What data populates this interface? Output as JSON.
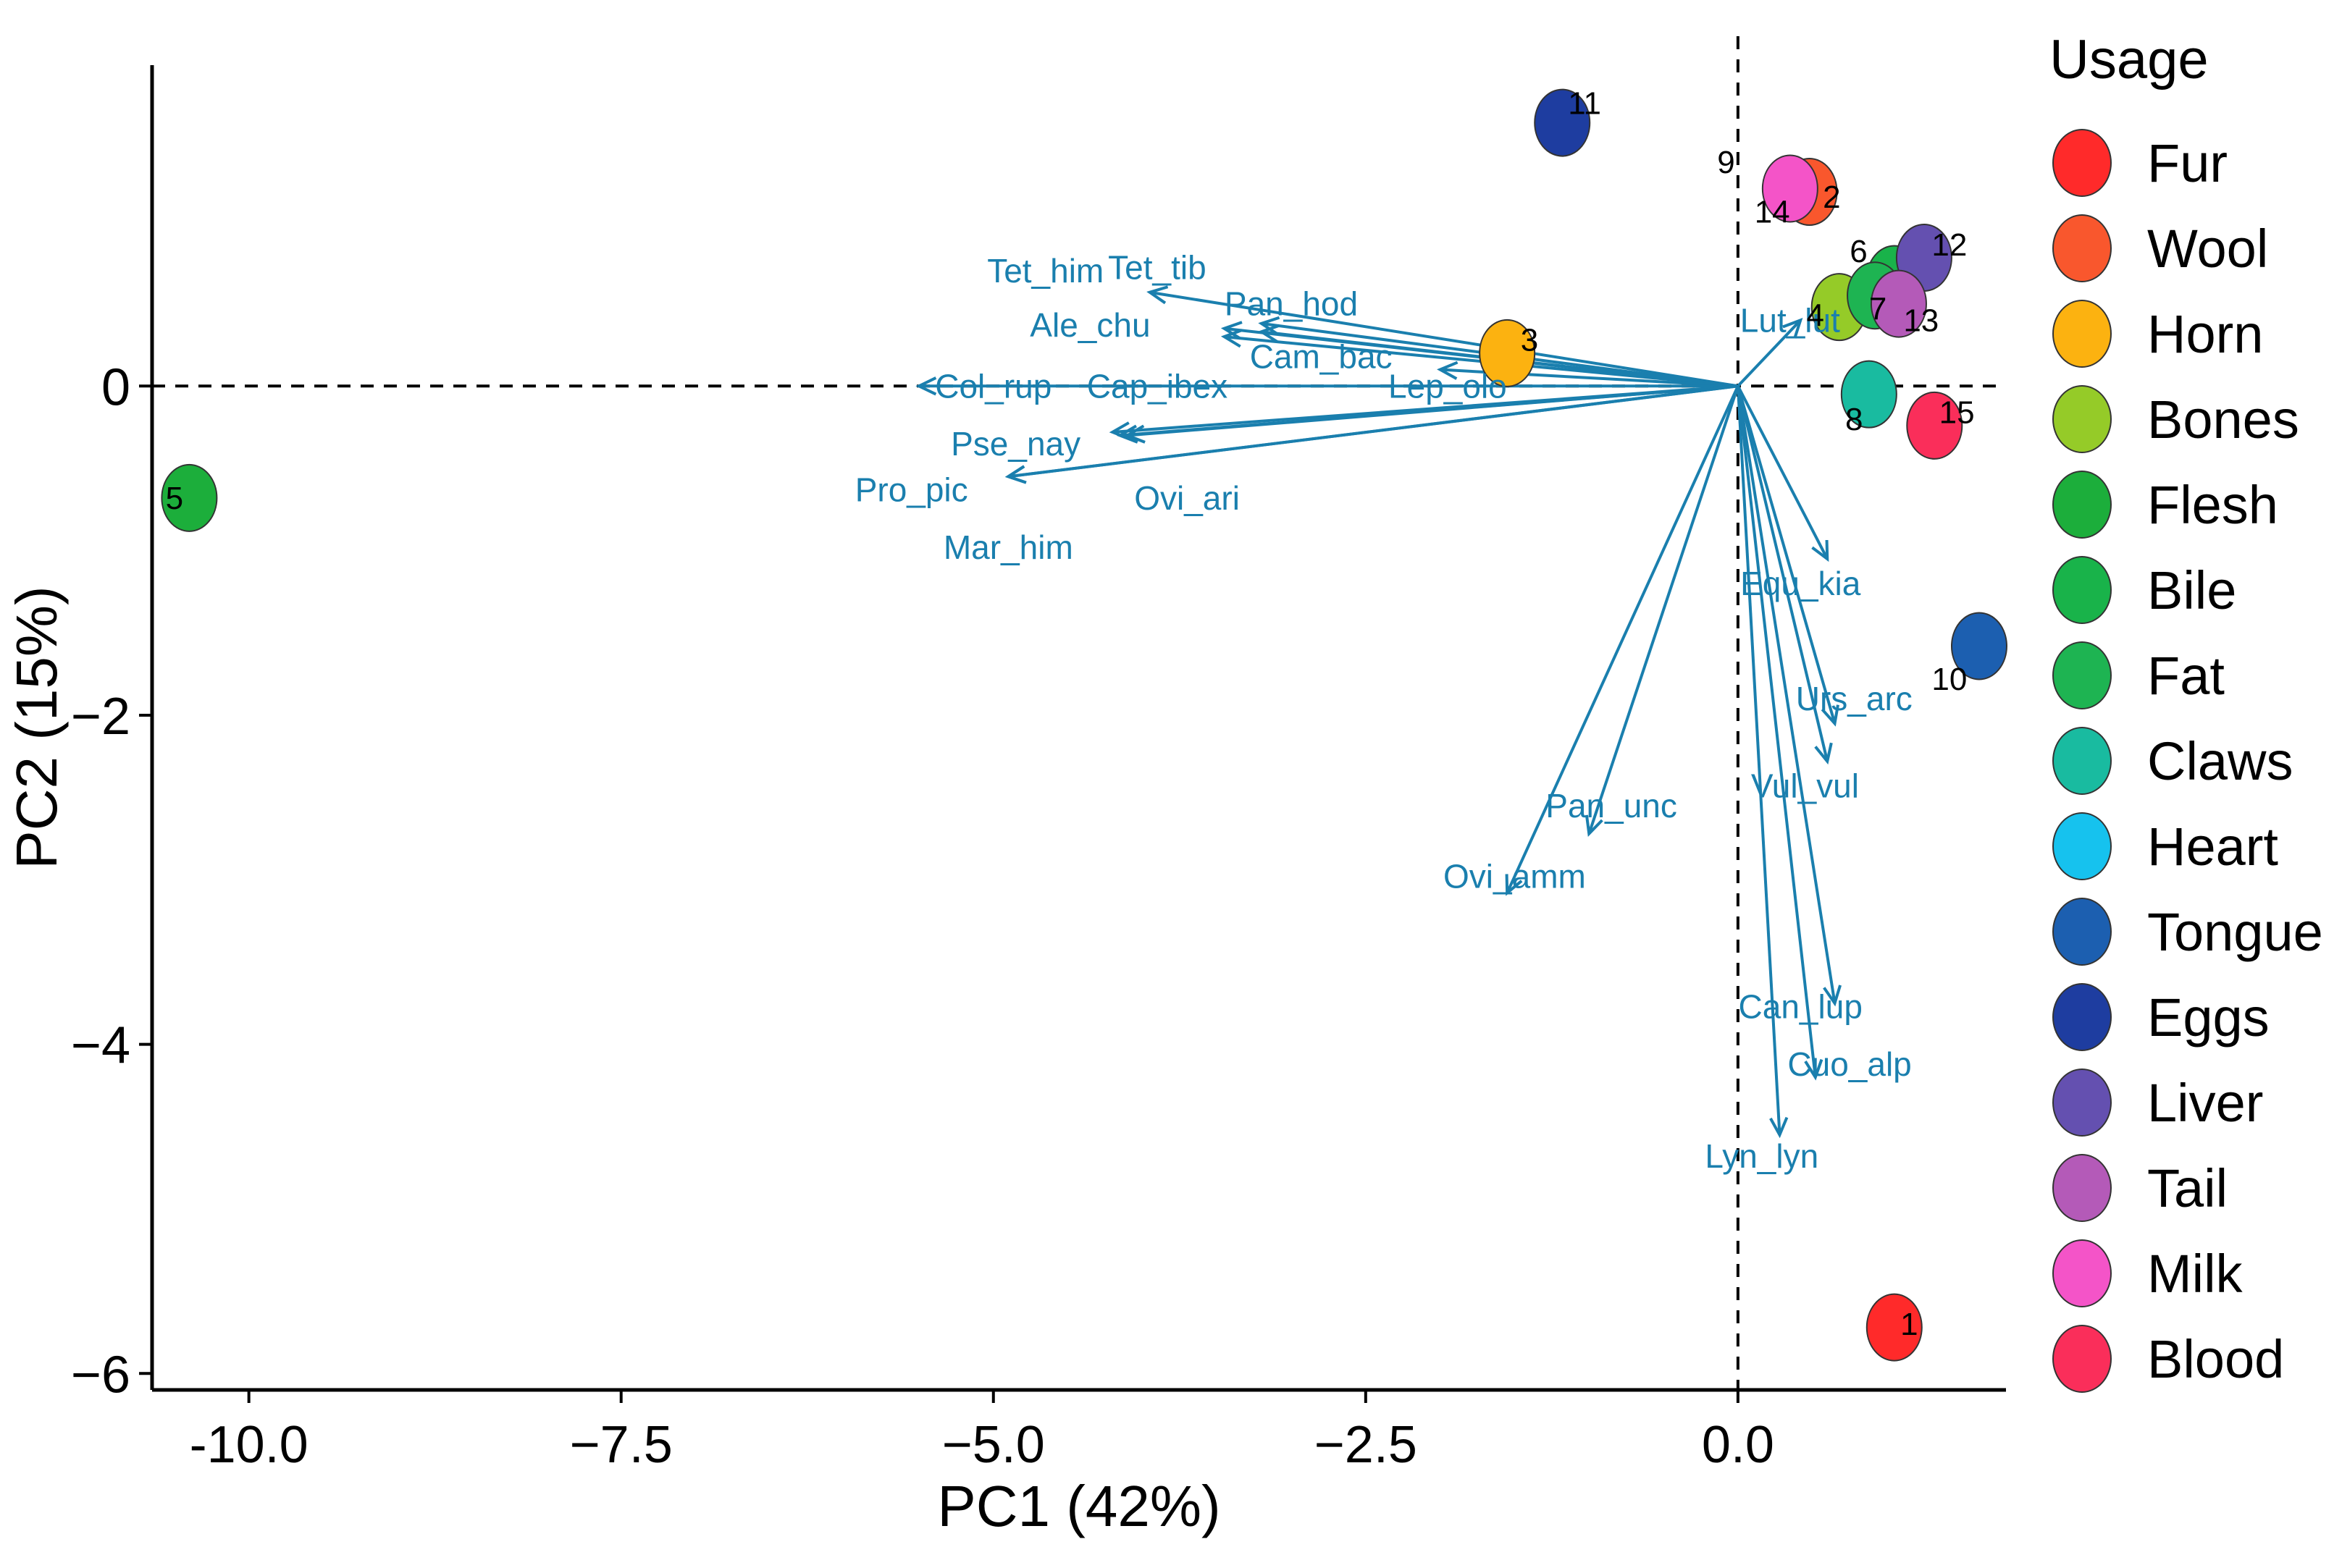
{
  "chart_data": {
    "type": "scatter",
    "subtype": "pca-biplot",
    "xlabel": "PC1 (42%)",
    "ylabel": "PC2 (15%)",
    "xlim": [
      -10.65,
      1.8
    ],
    "ylim": [
      -6.1,
      1.95
    ],
    "x_ticks": [
      -10.0,
      -7.5,
      -5.0,
      -2.5,
      0.0
    ],
    "x_tick_labels": [
      "-10.0",
      "−7.5",
      "−5.0",
      "−2.5",
      "0.0"
    ],
    "y_ticks": [
      -6,
      -4,
      -2,
      0
    ],
    "y_tick_labels": [
      "−6",
      "−4",
      "−2",
      "0"
    ],
    "reference_lines": {
      "x": 0,
      "y": 0
    },
    "legend": {
      "title": "Usage",
      "position": "right",
      "entries": [
        {
          "label": "Fur",
          "color": "#ff2a2a"
        },
        {
          "label": "Wool",
          "color": "#f9572d"
        },
        {
          "label": "Horn",
          "color": "#fcb210"
        },
        {
          "label": "Bones",
          "color": "#95cb28"
        },
        {
          "label": "Flesh",
          "color": "#1cae3b"
        },
        {
          "label": "Bile",
          "color": "#19b34a"
        },
        {
          "label": "Fat",
          "color": "#1eb452"
        },
        {
          "label": "Claws",
          "color": "#19bba0"
        },
        {
          "label": "Heart",
          "color": "#16c2ee"
        },
        {
          "label": "Tongue",
          "color": "#1c5fb0"
        },
        {
          "label": "Eggs",
          "color": "#1e3da0"
        },
        {
          "label": "Liver",
          "color": "#6450b0"
        },
        {
          "label": "Tail",
          "color": "#b45ab8"
        },
        {
          "label": "Milk",
          "color": "#f454c8"
        },
        {
          "label": "Blood",
          "color": "#fa2e5a"
        }
      ]
    },
    "points": [
      {
        "id": "1",
        "x": 1.05,
        "y": -5.72,
        "color": "#ff2a2a",
        "label_dx": 0.1,
        "label_dy": 0.02
      },
      {
        "id": "2",
        "x": 0.48,
        "y": 1.18,
        "color": "#f9572d",
        "label_dx": 0.15,
        "label_dy": -0.03
      },
      {
        "id": "3",
        "x": -1.55,
        "y": 0.2,
        "color": "#fcb210",
        "label_dx": 0.15,
        "label_dy": 0.08
      },
      {
        "id": "4",
        "x": 0.68,
        "y": 0.48,
        "color": "#95cb28",
        "label_dx": -0.16,
        "label_dy": -0.05
      },
      {
        "id": "5",
        "x": -10.4,
        "y": -0.68,
        "color": "#1cae3b",
        "label_dx": -0.1,
        "label_dy": 0.0
      },
      {
        "id": "6",
        "x": 1.05,
        "y": 0.65,
        "color": "#19b34a",
        "label_dx": -0.24,
        "label_dy": 0.17
      },
      {
        "id": "7",
        "x": 0.92,
        "y": 0.55,
        "color": "#1eb452",
        "label_dx": 0.02,
        "label_dy": -0.08
      },
      {
        "id": "8",
        "x": 0.88,
        "y": -0.05,
        "color": "#19bba0",
        "label_dx": -0.1,
        "label_dy": -0.15
      },
      {
        "id": "10",
        "x": 1.62,
        "y": -1.58,
        "color": "#1c5fb0",
        "label_dx": -0.2,
        "label_dy": -0.2
      },
      {
        "id": "11",
        "x": -1.18,
        "y": 1.6,
        "color": "#1e3da0",
        "label_dx": 0.15,
        "label_dy": 0.12
      },
      {
        "id": "12",
        "x": 1.25,
        "y": 0.78,
        "color": "#6450b0",
        "label_dx": 0.17,
        "label_dy": 0.08
      },
      {
        "id": "13",
        "x": 1.08,
        "y": 0.5,
        "color": "#b45ab8",
        "label_dx": 0.15,
        "label_dy": -0.1
      },
      {
        "id": "14",
        "x": 0.35,
        "y": 1.2,
        "color": "#f454c8",
        "label_dx": -0.12,
        "label_dy": -0.14
      },
      {
        "id": "15",
        "x": 1.32,
        "y": -0.24,
        "color": "#fa2e5a",
        "label_dx": 0.15,
        "label_dy": 0.08
      }
    ],
    "annotations": [
      {
        "id": "9",
        "x": -0.08,
        "y": 1.36,
        "color": "#000000"
      }
    ],
    "variables": [
      {
        "name": "Tet_him",
        "x": -3.95,
        "y": 0.57,
        "label_x": -4.65,
        "label_y": 0.7
      },
      {
        "name": "Tet_tib",
        "x": -3.2,
        "y": 0.33,
        "label_x": -3.9,
        "label_y": 0.72
      },
      {
        "name": "Ale_chu",
        "x": -3.45,
        "y": 0.3,
        "label_x": -4.35,
        "label_y": 0.37
      },
      {
        "name": "Pan_hod",
        "x": -3.2,
        "y": 0.38,
        "label_x": -3.0,
        "label_y": 0.5
      },
      {
        "name": "Cam_bac",
        "x": -3.45,
        "y": 0.35,
        "label_x": -2.8,
        "label_y": 0.18
      },
      {
        "name": "Lep_olo",
        "x": -2.0,
        "y": 0.1,
        "label_x": -1.95,
        "label_y": 0.0
      },
      {
        "name": "Cap_ibex",
        "x": -4.1,
        "y": -0.3,
        "label_x": -3.9,
        "label_y": 0.0
      },
      {
        "name": "Col_rup",
        "x": -5.5,
        "y": 0.0,
        "label_x": -5.0,
        "label_y": 0.0
      },
      {
        "name": "Pse_nay",
        "x": -4.2,
        "y": -0.28,
        "label_x": -4.85,
        "label_y": -0.35
      },
      {
        "name": "Ovi_ari",
        "x": -4.15,
        "y": -0.3,
        "label_x": -3.7,
        "label_y": -0.68
      },
      {
        "name": "Pro_pic",
        "x": -4.9,
        "y": -0.55,
        "label_x": -5.55,
        "label_y": -0.63
      },
      {
        "name": "Mar_him",
        "x": -4.9,
        "y": -0.55,
        "label_x": -4.9,
        "label_y": -0.98
      },
      {
        "name": "Lut_lut",
        "x": 0.42,
        "y": 0.4,
        "label_x": 0.35,
        "label_y": 0.4
      },
      {
        "name": "Equ_kia",
        "x": 0.6,
        "y": -1.05,
        "label_x": 0.42,
        "label_y": -1.2
      },
      {
        "name": "Urs_arc",
        "x": 0.65,
        "y": -2.05,
        "label_x": 0.78,
        "label_y": -1.9
      },
      {
        "name": "Vul_vul",
        "x": 0.6,
        "y": -2.28,
        "label_x": 0.45,
        "label_y": -2.43
      },
      {
        "name": "Pan_unc",
        "x": -1.0,
        "y": -2.72,
        "label_x": -0.85,
        "label_y": -2.55
      },
      {
        "name": "Ovi_amm",
        "x": -1.55,
        "y": -3.08,
        "label_x": -1.5,
        "label_y": -2.98
      },
      {
        "name": "Can_lup",
        "x": 0.65,
        "y": -3.75,
        "label_x": 0.42,
        "label_y": -3.77
      },
      {
        "name": "Cuo_alp",
        "x": 0.52,
        "y": -4.2,
        "label_x": 0.75,
        "label_y": -4.12
      },
      {
        "name": "Lyn_lyn",
        "x": 0.28,
        "y": -4.55,
        "label_x": 0.16,
        "label_y": -4.68
      }
    ]
  }
}
